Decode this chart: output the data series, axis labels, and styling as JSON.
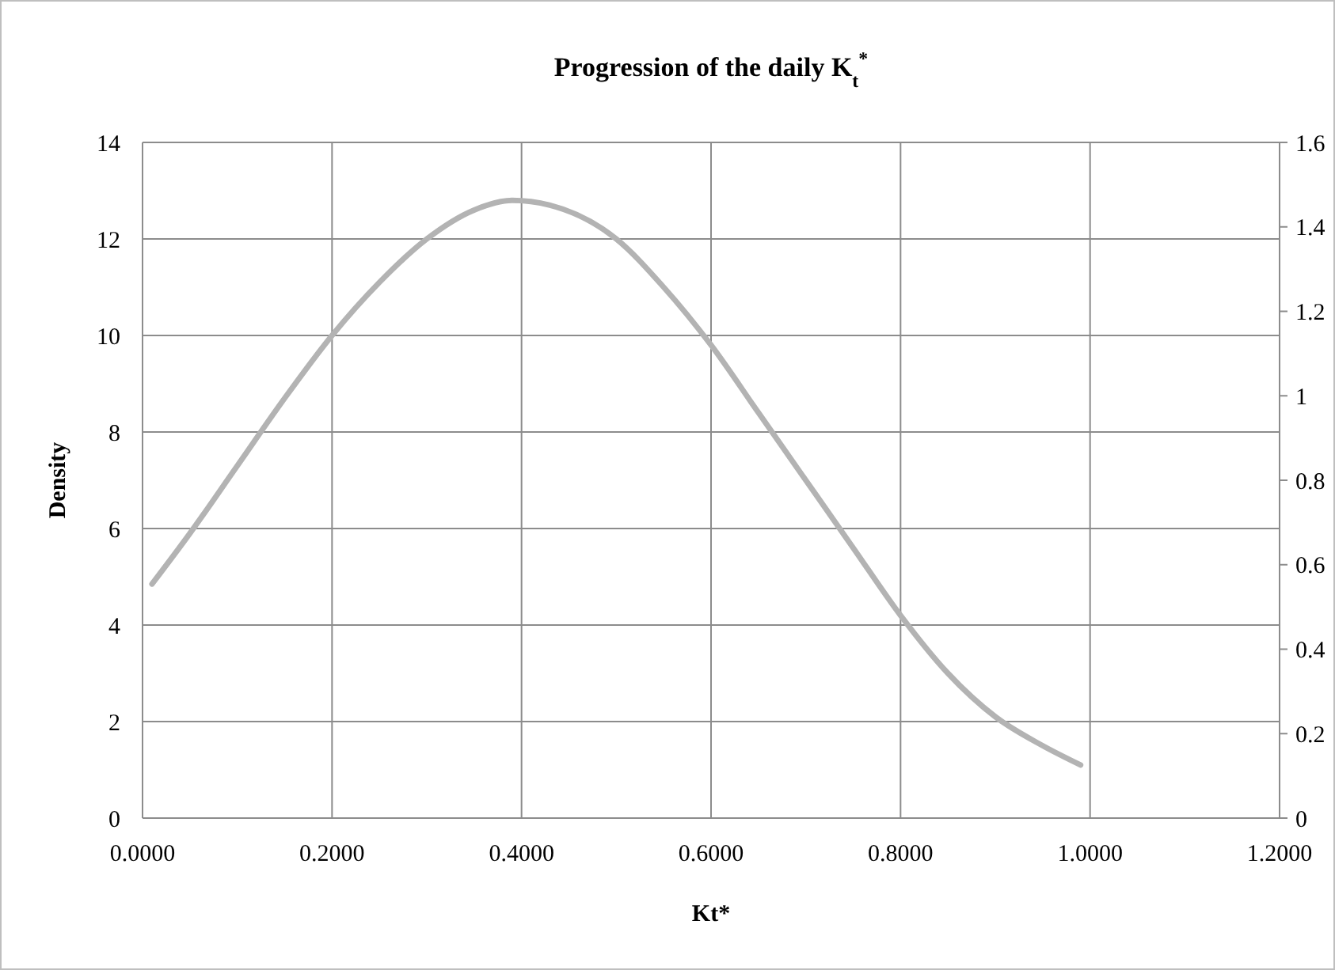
{
  "chart_data": {
    "type": "line",
    "title": "Progression of the daily K$_{t}$$^{*}$",
    "xlabel": "Kt*",
    "ylabel": "Density",
    "x": [
      0.01,
      0.05,
      0.1,
      0.15,
      0.2,
      0.25,
      0.3,
      0.35,
      0.39,
      0.43,
      0.5,
      0.55,
      0.6,
      0.65,
      0.7,
      0.75,
      0.8,
      0.85,
      0.9,
      0.95,
      0.99
    ],
    "series": [
      {
        "color": "#b3b3b3",
        "values": [
          4.85,
          5.9,
          7.3,
          8.7,
          10.0,
          11.1,
          12.0,
          12.6,
          12.8,
          12.7,
          12.0,
          11.0,
          9.8,
          8.4,
          7.0,
          5.6,
          4.2,
          3.0,
          2.1,
          1.5,
          1.1
        ]
      }
    ],
    "xlim": [
      0,
      1.2
    ],
    "xticks": [
      {
        "value": 0,
        "label": "0.0000"
      },
      {
        "value": 0.2,
        "label": "0.2000"
      },
      {
        "value": 0.4,
        "label": "0.4000"
      },
      {
        "value": 0.6,
        "label": "0.6000"
      },
      {
        "value": 0.8,
        "label": "0.8000"
      },
      {
        "value": 1.0,
        "label": "1.0000"
      },
      {
        "value": 1.2,
        "label": "1.2000"
      }
    ],
    "ylim": [
      0,
      14
    ],
    "yticks": [
      0,
      2,
      4,
      6,
      8,
      10,
      12,
      14
    ],
    "y2lim": [
      0,
      1.6
    ],
    "y2ticks": [
      0,
      0.2,
      0.4,
      0.6,
      0.8,
      1,
      1.2,
      1.4,
      1.6
    ],
    "grid": true,
    "marker": "none",
    "line_style": "solid"
  }
}
